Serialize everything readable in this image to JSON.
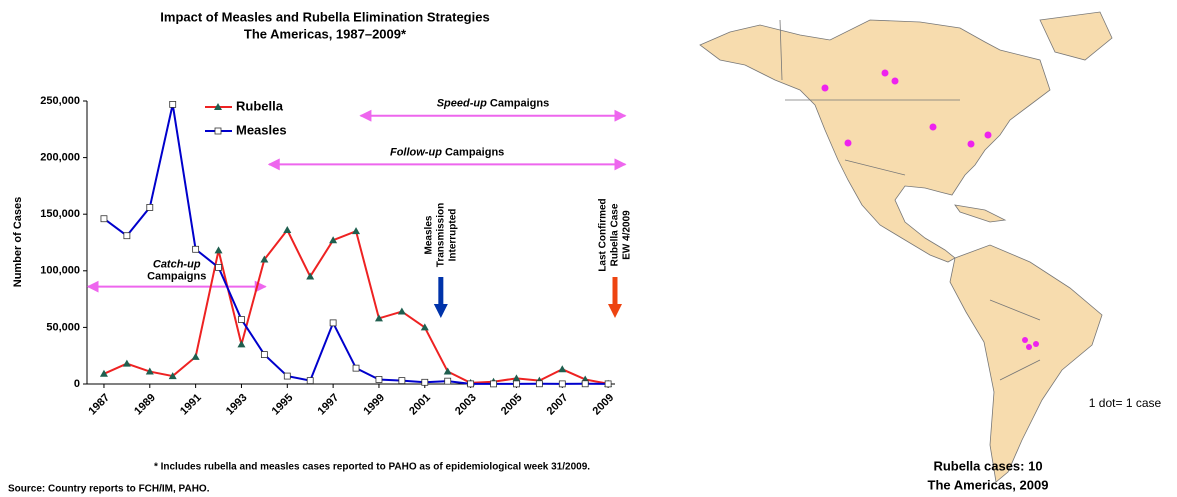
{
  "chart_data": {
    "type": "line",
    "title": [
      "Impact of Measles and Rubella Elimination Strategies",
      "The Americas, 1987–2009*"
    ],
    "ylabel": "Number of Cases",
    "x": [
      1987,
      1988,
      1989,
      1990,
      1991,
      1992,
      1993,
      1994,
      1995,
      1996,
      1997,
      1998,
      1999,
      2000,
      2001,
      2002,
      2003,
      2004,
      2005,
      2006,
      2007,
      2008,
      2009
    ],
    "xlim": [
      1986.26,
      2009.3
    ],
    "xticks": [
      1987,
      1989,
      1991,
      1993,
      1995,
      1997,
      1999,
      2001,
      2003,
      2005,
      2007,
      2009
    ],
    "ylim": [
      0,
      250000
    ],
    "yticks": [
      0,
      {
        "value": 50000,
        "label": "50,000"
      },
      {
        "value": 100000,
        "label": "100,000"
      },
      {
        "value": 150000,
        "label": "150,000"
      },
      {
        "value": 200000,
        "label": "200,000"
      },
      {
        "value": 250000,
        "label": "250,000"
      }
    ],
    "series": [
      {
        "name": "Rubella",
        "color": "#ee2222",
        "marker_color": "#1f5f4f",
        "values": [
          9000,
          18000,
          11000,
          7000,
          24000,
          118000,
          35000,
          110000,
          136000,
          95000,
          127000,
          135000,
          58000,
          64000,
          50000,
          11000,
          1000,
          2000,
          5000,
          3000,
          13000,
          4000,
          200
        ]
      },
      {
        "name": "Measles",
        "color": "#0000cc",
        "marker_color": "#ffffff",
        "values": [
          146000,
          131000,
          156000,
          247000,
          119000,
          103000,
          57000,
          26000,
          7000,
          3000,
          54000,
          14000,
          4000,
          3000,
          1500,
          2500,
          100,
          100,
          100,
          200,
          100,
          200,
          100
        ]
      }
    ],
    "campaigns": [
      {
        "italic": "Speed-up",
        "text": "Campaigns",
        "x": [
          1998.2,
          2009.75
        ],
        "y": 237000
      },
      {
        "italic": "Follow-up",
        "text": "Campaigns",
        "x": [
          1994.2,
          2009.75
        ],
        "y": 194000
      },
      {
        "italic": "Catch-up",
        "text": "Campaigns",
        "x": [
          1986.3,
          1994.05
        ],
        "y": 86000
      }
    ],
    "events": [
      {
        "lines": [
          "Measles",
          "Transmission",
          "Interrupted"
        ],
        "x": 2001.7,
        "color": "#0033aa"
      },
      {
        "lines": [
          "Last Confirmed",
          "Rubella Case",
          "EW 4/2009"
        ],
        "x": 2009.3,
        "color": "#ee4411"
      }
    ],
    "footnote": "* Includes rubella and measles cases reported to PAHO as of epidemiological week 31/2009.",
    "source": "Source: Country reports to FCH/IM, PAHO.",
    "map": {
      "title": [
        "Rubella cases: 10",
        "The Americas, 2009"
      ],
      "legend": "1 dot= 1 case"
    }
  }
}
